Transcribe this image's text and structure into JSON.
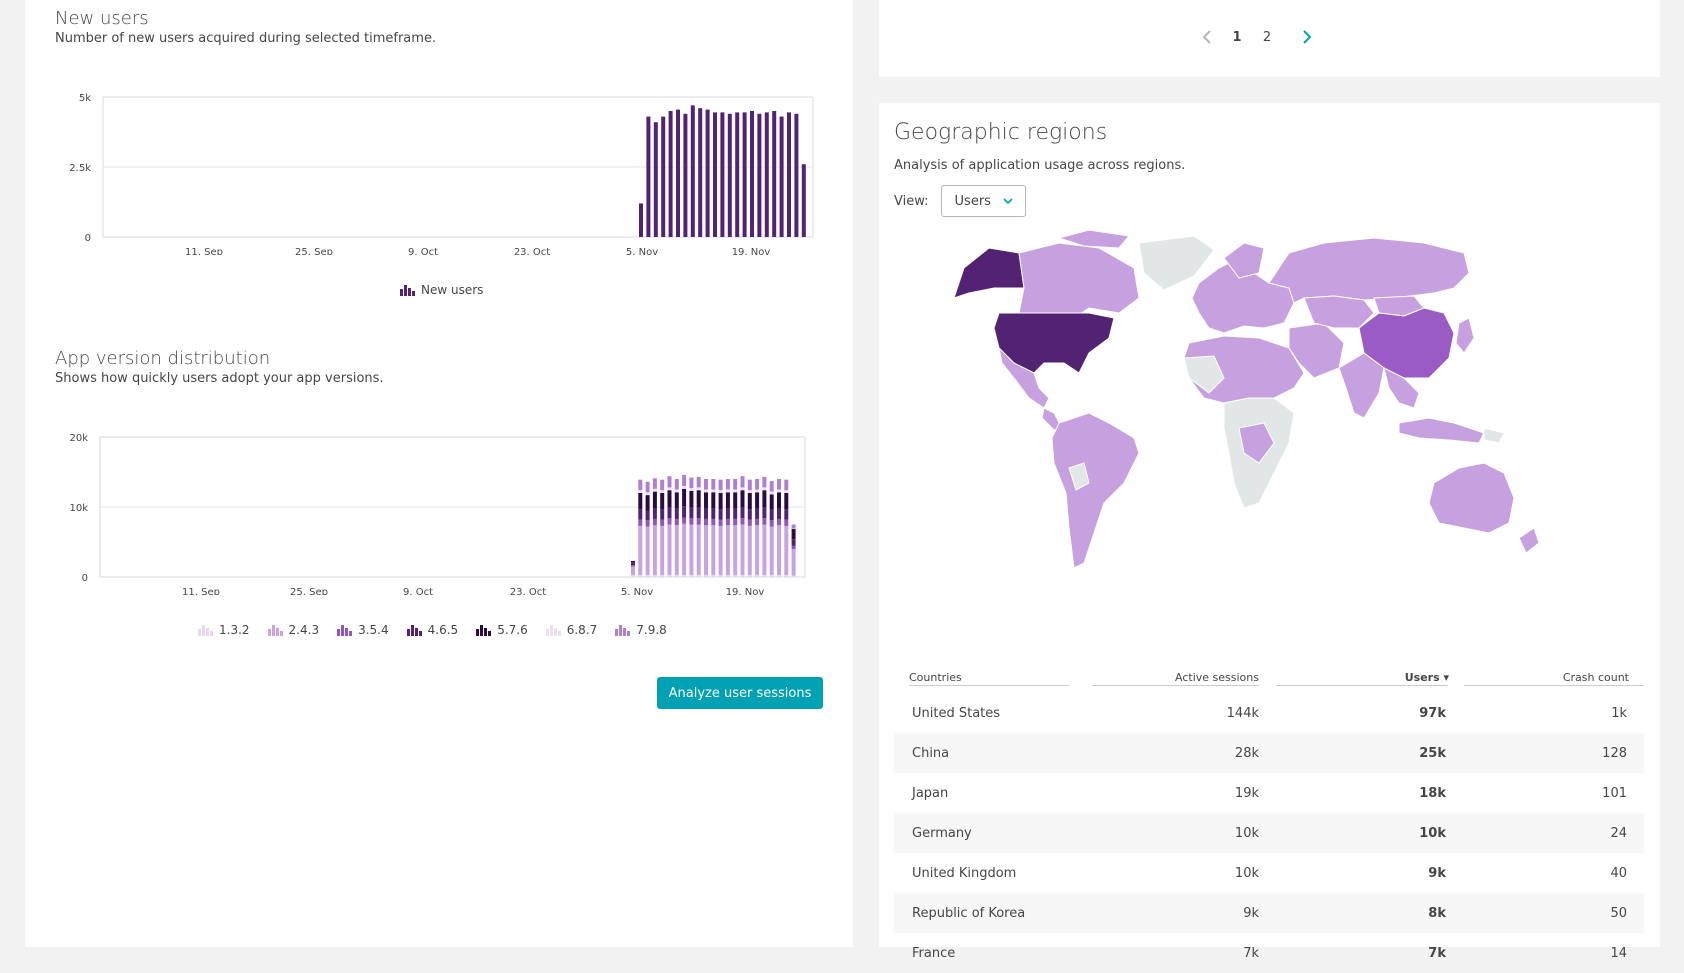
{
  "new_users": {
    "title": "New users",
    "subtitle": "Number of new users acquired during selected timeframe.",
    "chart_data": {
      "type": "bar",
      "y_ticks": [
        "5k",
        "2.5k",
        "0"
      ],
      "x_ticks": [
        "11. Sep",
        "25. Sep",
        "9. Oct",
        "23. Oct",
        "5. Nov",
        "19. Nov"
      ],
      "ylim": [
        0,
        5000
      ],
      "series": [
        {
          "name": "New users",
          "color": "#522273",
          "values": [
            1200,
            4300,
            4100,
            4300,
            4500,
            4550,
            4400,
            4700,
            4600,
            4550,
            4450,
            4450,
            4400,
            4450,
            4450,
            4500,
            4400,
            4450,
            4500,
            4300,
            4450,
            4400,
            2600
          ]
        }
      ],
      "grid": true,
      "legend": "bottom-center"
    }
  },
  "app_versions": {
    "title": "App version distribution",
    "subtitle": "Shows how quickly users adopt your app versions.",
    "chart_data": {
      "type": "bar",
      "stacked": true,
      "y_ticks": [
        "20k",
        "10k",
        "0"
      ],
      "x_ticks": [
        "11. Sep",
        "25. Sep",
        "9. Oct",
        "23. Oct",
        "5. Nov",
        "19. Nov"
      ],
      "ylim": [
        0,
        20000
      ],
      "series": [
        {
          "name": "1.3.2",
          "color": "#e8d5f2",
          "values": [
            300,
            300,
            300,
            300,
            300,
            300,
            300,
            300,
            300,
            300,
            300,
            300,
            300,
            300,
            300,
            300,
            300,
            300,
            300,
            300,
            300,
            300,
            200
          ]
        },
        {
          "name": "2.4.3",
          "color": "#c9a3e0",
          "values": [
            1200,
            7000,
            6900,
            7100,
            7000,
            7200,
            7100,
            7300,
            7200,
            7200,
            7100,
            7100,
            7000,
            7100,
            7100,
            7200,
            7000,
            7100,
            7200,
            6900,
            7100,
            7000,
            3800
          ]
        },
        {
          "name": "3.5.4",
          "color": "#9355b7",
          "values": [
            200,
            900,
            900,
            900,
            900,
            900,
            900,
            900,
            900,
            900,
            900,
            900,
            900,
            900,
            900,
            900,
            900,
            900,
            900,
            900,
            900,
            900,
            500
          ]
        },
        {
          "name": "4.6.5",
          "color": "#522273",
          "values": [
            400,
            1500,
            1400,
            1500,
            1500,
            1600,
            1500,
            1600,
            1500,
            1600,
            1500,
            1500,
            1500,
            1500,
            1500,
            1600,
            1500,
            1500,
            1600,
            1500,
            1500,
            1500,
            900
          ]
        },
        {
          "name": "5.7.6",
          "color": "#2a0c40",
          "values": [
            200,
            2300,
            2200,
            2400,
            2300,
            2400,
            2300,
            2500,
            2400,
            2400,
            2300,
            2300,
            2300,
            2300,
            2300,
            2400,
            2300,
            2300,
            2400,
            2200,
            2300,
            2300,
            1500
          ]
        },
        {
          "name": "6.8.7",
          "color": "#ede0f5",
          "values": [
            0,
            400,
            400,
            400,
            400,
            400,
            400,
            400,
            400,
            400,
            400,
            400,
            400,
            400,
            400,
            400,
            400,
            400,
            400,
            400,
            400,
            400,
            100
          ]
        },
        {
          "name": "7.9.8",
          "color": "#b07fd0",
          "values": [
            0,
            1500,
            1500,
            1500,
            1500,
            1600,
            1500,
            1600,
            1500,
            1500,
            1500,
            1500,
            1500,
            1500,
            1500,
            1600,
            1500,
            1500,
            1500,
            1500,
            1500,
            1500,
            500
          ]
        }
      ],
      "grid": true,
      "legend": "bottom-center"
    }
  },
  "analyze_button": {
    "label": "Analyze user sessions"
  },
  "pagination": {
    "pages": [
      "1",
      "2"
    ],
    "active": "1"
  },
  "geo": {
    "title": "Geographic regions",
    "subtitle": "Analysis of application usage across regions.",
    "view_label": "View:",
    "view_value": "Users",
    "map_colors": {
      "high": "#522273",
      "medium": "#c7a0e0",
      "none": "#e1e6e6"
    },
    "table": {
      "headers": {
        "countries": "Countries",
        "sessions": "Active sessions",
        "users": "Users ▾",
        "crash": "Crash count"
      },
      "rows": [
        {
          "country": "United States",
          "sessions": "144k",
          "users": "97k",
          "crash": "1k"
        },
        {
          "country": "China",
          "sessions": "28k",
          "users": "25k",
          "crash": "128"
        },
        {
          "country": "Japan",
          "sessions": "19k",
          "users": "18k",
          "crash": "101"
        },
        {
          "country": "Germany",
          "sessions": "10k",
          "users": "10k",
          "crash": "24"
        },
        {
          "country": "United Kingdom",
          "sessions": "10k",
          "users": "9k",
          "crash": "40"
        },
        {
          "country": "Republic of Korea",
          "sessions": "9k",
          "users": "8k",
          "crash": "50"
        },
        {
          "country": "France",
          "sessions": "7k",
          "users": "7k",
          "crash": "14"
        }
      ]
    }
  }
}
